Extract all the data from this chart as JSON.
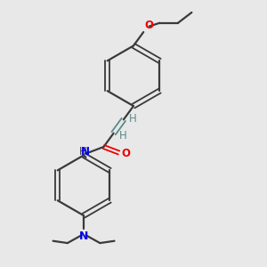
{
  "background_color": "#e8e8e8",
  "bond_color": "#3a3a3a",
  "nitrogen_color": "#0000ee",
  "oxygen_color": "#ee0000",
  "vinyl_color": "#5a8a8a",
  "text_color": "#3a3a3a",
  "figsize": [
    3.0,
    3.0
  ],
  "dpi": 100,
  "xlim": [
    0,
    10
  ],
  "ylim": [
    0,
    10
  ]
}
